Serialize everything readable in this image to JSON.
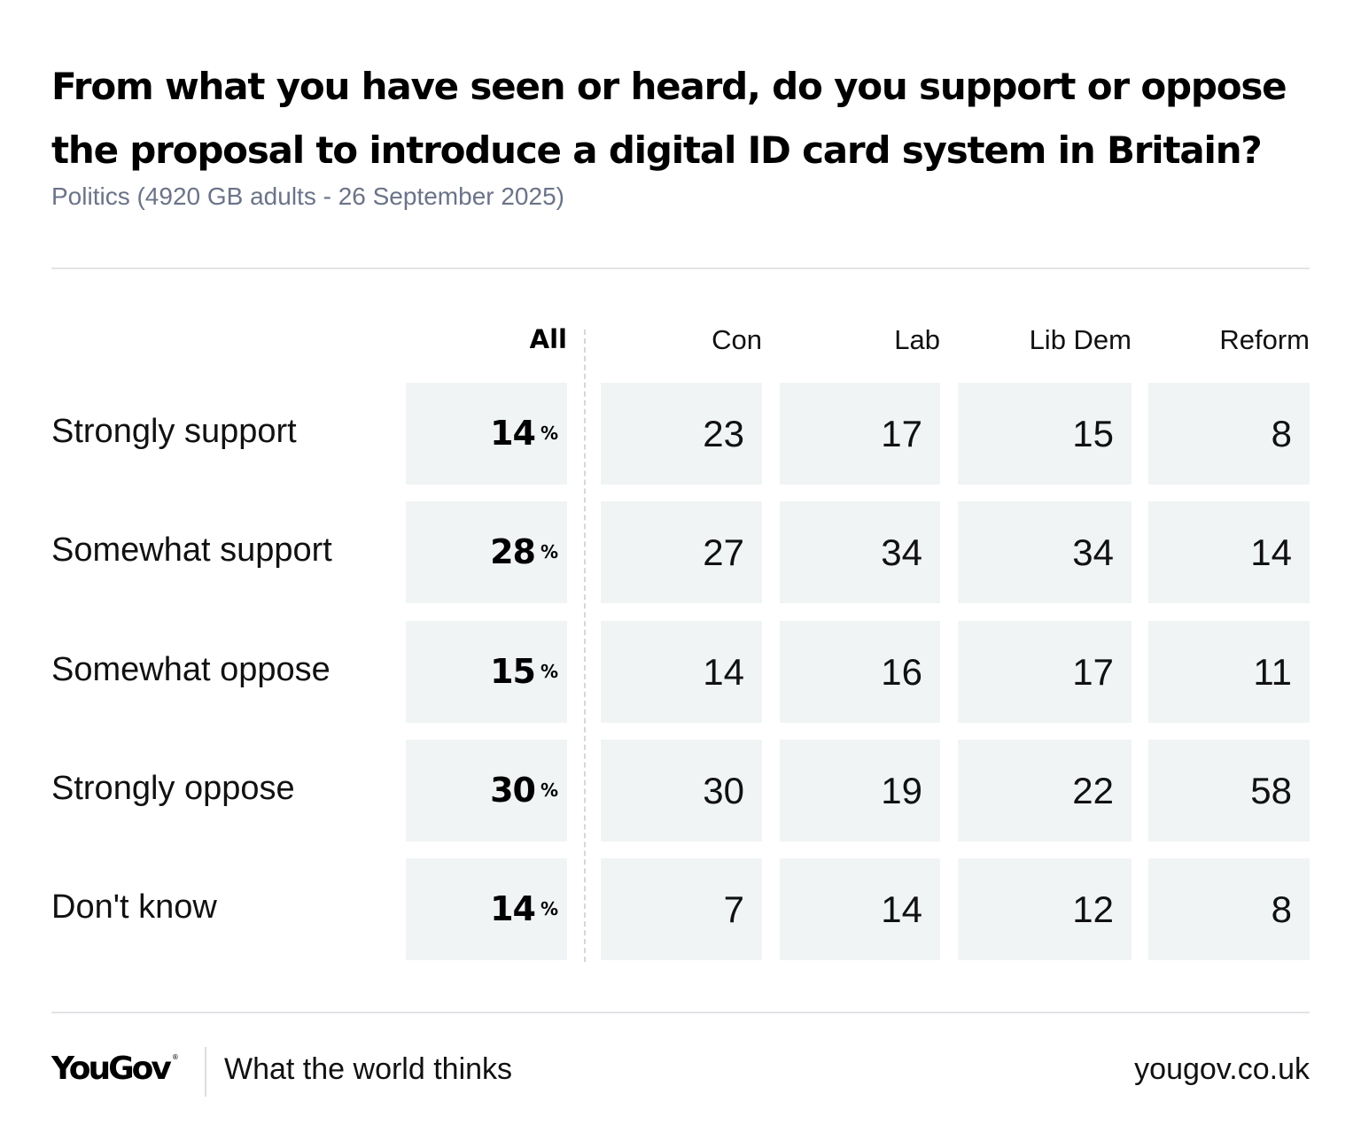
{
  "chart_data": {
    "type": "table",
    "title": "From what you have seen or heard, do you support or oppose the proposal to introduce a digital ID card system in Britain?",
    "subtitle": "Politics (4920 GB adults - 26 September 2025)",
    "columns": [
      "All",
      "Con",
      "Lab",
      "Lib Dem",
      "Reform"
    ],
    "rows": [
      "Strongly support",
      "Somewhat support",
      "Somewhat oppose",
      "Strongly oppose",
      "Don't know"
    ],
    "percent_suffix": "%",
    "values": [
      [
        14,
        23,
        17,
        15,
        8
      ],
      [
        28,
        27,
        34,
        34,
        14
      ],
      [
        15,
        14,
        16,
        17,
        11
      ],
      [
        30,
        30,
        19,
        22,
        58
      ],
      [
        14,
        7,
        14,
        12,
        8
      ]
    ],
    "colors": {
      "cell_bg": "#f1f4f5",
      "subtitle": "#6b7388",
      "text": "#111111"
    }
  },
  "footer": {
    "logo_text": "YouGov",
    "logo_mark": "®",
    "tagline": "What the world thinks",
    "site": "yougov.co.uk"
  }
}
